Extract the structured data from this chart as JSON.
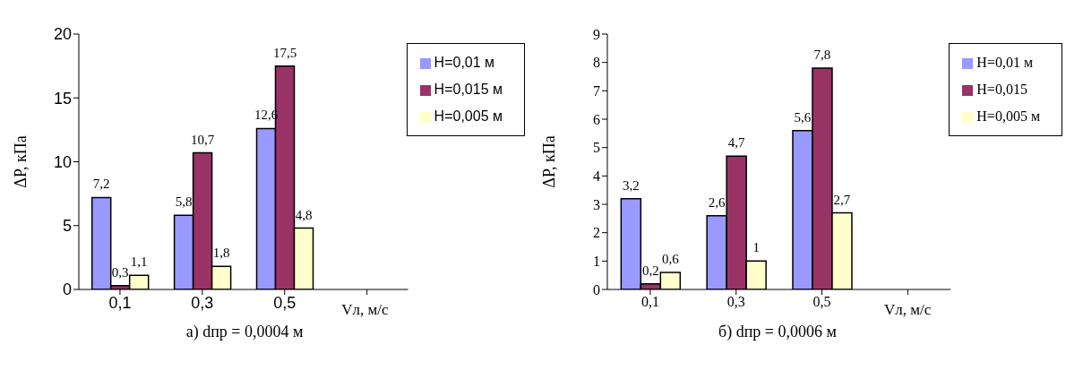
{
  "chart_data": [
    {
      "type": "bar",
      "title": "а) dпр = 0,0004 м",
      "xlabel": "Vл, м/с",
      "ylabel": "ΔP, кПа",
      "categories": [
        "0,1",
        "0,3",
        "0,5",
        null
      ],
      "ylim": [
        0,
        20
      ],
      "yticks": [
        0,
        5,
        10,
        15,
        20
      ],
      "grid": false,
      "legend": "top right",
      "series": [
        {
          "name": "H=0,01 м",
          "color": "#9999ff",
          "values": [
            7.2,
            5.8,
            12.6,
            null
          ],
          "value_labels": [
            "7,2",
            "5,8",
            "12,6",
            null
          ]
        },
        {
          "name": "H=0,015 м",
          "color": "#993366",
          "values": [
            0.3,
            10.7,
            17.5,
            null
          ],
          "value_labels": [
            "0,3",
            "10,7",
            "17,5",
            null
          ]
        },
        {
          "name": "H=0,005 м",
          "color": "#ffffcc",
          "values": [
            1.1,
            1.8,
            4.8,
            null
          ],
          "value_labels": [
            "1,1",
            "1,8",
            "4,8",
            null
          ]
        }
      ]
    },
    {
      "type": "bar",
      "title": "б) dпр = 0,0006 м",
      "xlabel": "Vл, м/с",
      "ylabel": "ΔP, кПа",
      "categories": [
        "0,1",
        "0,3",
        "0,5",
        null
      ],
      "ylim": [
        0,
        9
      ],
      "yticks": [
        0,
        1,
        2,
        3,
        4,
        5,
        6,
        7,
        8,
        9
      ],
      "grid": false,
      "legend": "top right",
      "series": [
        {
          "name": "H=0,01  м",
          "color": "#9999ff",
          "values": [
            3.2,
            2.6,
            5.6,
            null
          ],
          "value_labels": [
            "3,2",
            "2,6",
            "5,6",
            null
          ]
        },
        {
          "name": "H=0,015",
          "color": "#993366",
          "values": [
            0.2,
            4.7,
            7.8,
            null
          ],
          "value_labels": [
            "0,2",
            "4,7",
            "7,8",
            null
          ]
        },
        {
          "name": "H=0,005  м",
          "color": "#ffffcc",
          "values": [
            0.6,
            1.0,
            2.7,
            null
          ],
          "value_labels": [
            "0,6",
            "1",
            "2,7",
            null
          ]
        }
      ]
    }
  ]
}
